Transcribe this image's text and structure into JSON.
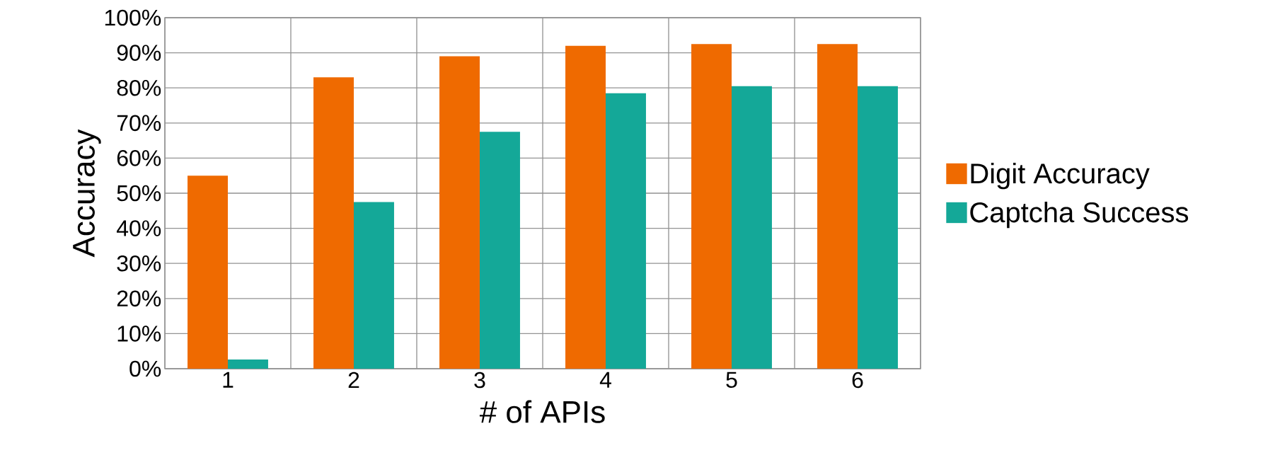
{
  "chart_data": {
    "type": "bar",
    "xlabel": "# of APIs",
    "ylabel": "Accuracy",
    "categories": [
      "1",
      "2",
      "3",
      "4",
      "5",
      "6"
    ],
    "series": [
      {
        "name": "Digit Accuracy",
        "color": "#ef6a00",
        "values": [
          55,
          83,
          89,
          92,
          92.5,
          92.5
        ]
      },
      {
        "name": "Captcha Success",
        "color": "#14a898",
        "values": [
          2.6,
          47.5,
          67.5,
          78.5,
          80.5,
          80.5
        ]
      }
    ],
    "ylim": [
      0,
      100
    ],
    "yticks": [
      {
        "value": 0,
        "label": "0%"
      },
      {
        "value": 10,
        "label": "10%"
      },
      {
        "value": 20,
        "label": "20%"
      },
      {
        "value": 30,
        "label": "30%"
      },
      {
        "value": 40,
        "label": "40%"
      },
      {
        "value": 50,
        "label": "50%"
      },
      {
        "value": 60,
        "label": "60%"
      },
      {
        "value": 70,
        "label": "70%"
      },
      {
        "value": 80,
        "label": "80%"
      },
      {
        "value": 90,
        "label": "90%"
      },
      {
        "value": 100,
        "label": "100%"
      }
    ],
    "grid": true,
    "legend": "right"
  }
}
